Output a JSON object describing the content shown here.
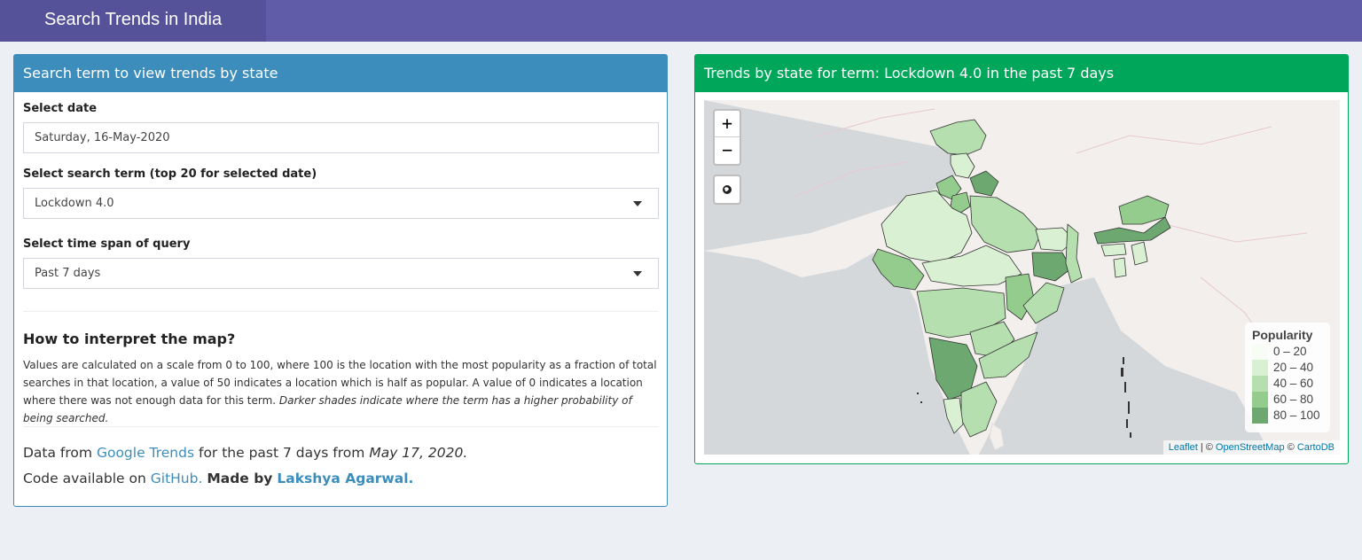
{
  "app": {
    "title": "Search Trends in India"
  },
  "left_panel": {
    "header": "Search term to view trends by state",
    "date": {
      "label": "Select date",
      "value": "Saturday, 16-May-2020"
    },
    "term": {
      "label": "Select search term (top 20 for selected date)",
      "value": "Lockdown 4.0"
    },
    "span": {
      "label": "Select time span of query",
      "value": "Past 7 days"
    },
    "how": {
      "heading": "How to interpret the map?",
      "body": "Values are calculated on a scale from 0 to 100, where 100 is the location with the most popularity as a fraction of total searches in that location, a value of 50 indicates a location which is half as popular. A value of 0 indicates a location where there was not enough data for this term.",
      "emphasis": "Darker shades indicate where the term has a higher probability of being searched."
    },
    "footer": {
      "data_prefix": "Data from",
      "google_link": "Google Trends",
      "data_middle": "for the past 7 days from",
      "data_date": "May 17, 2020.",
      "code_prefix": "Code available on",
      "github_link": "GitHub.",
      "made_by": "Made by",
      "author_link": "Lakshya Agarwal."
    }
  },
  "right_panel": {
    "header": "Trends by state for term: Lockdown 4.0 in the past 7 days",
    "map": {
      "zoom_in": "+",
      "zoom_out": "−",
      "globe_icon": "globe-icon",
      "legend": {
        "title": "Popularity",
        "items": [
          {
            "label": "0 – 20",
            "color": "#f7fcf5"
          },
          {
            "label": "20 – 40",
            "color": "#d9f0d3"
          },
          {
            "label": "40 – 60",
            "color": "#b5dfae"
          },
          {
            "label": "60 – 80",
            "color": "#94cc8d"
          },
          {
            "label": "80 – 100",
            "color": "#6ca870"
          }
        ]
      },
      "attribution": {
        "leaflet": "Leaflet",
        "sep1": "| ©",
        "osm": "OpenStreetMap",
        "sep2": "©",
        "carto": "CartoDB"
      }
    }
  }
}
